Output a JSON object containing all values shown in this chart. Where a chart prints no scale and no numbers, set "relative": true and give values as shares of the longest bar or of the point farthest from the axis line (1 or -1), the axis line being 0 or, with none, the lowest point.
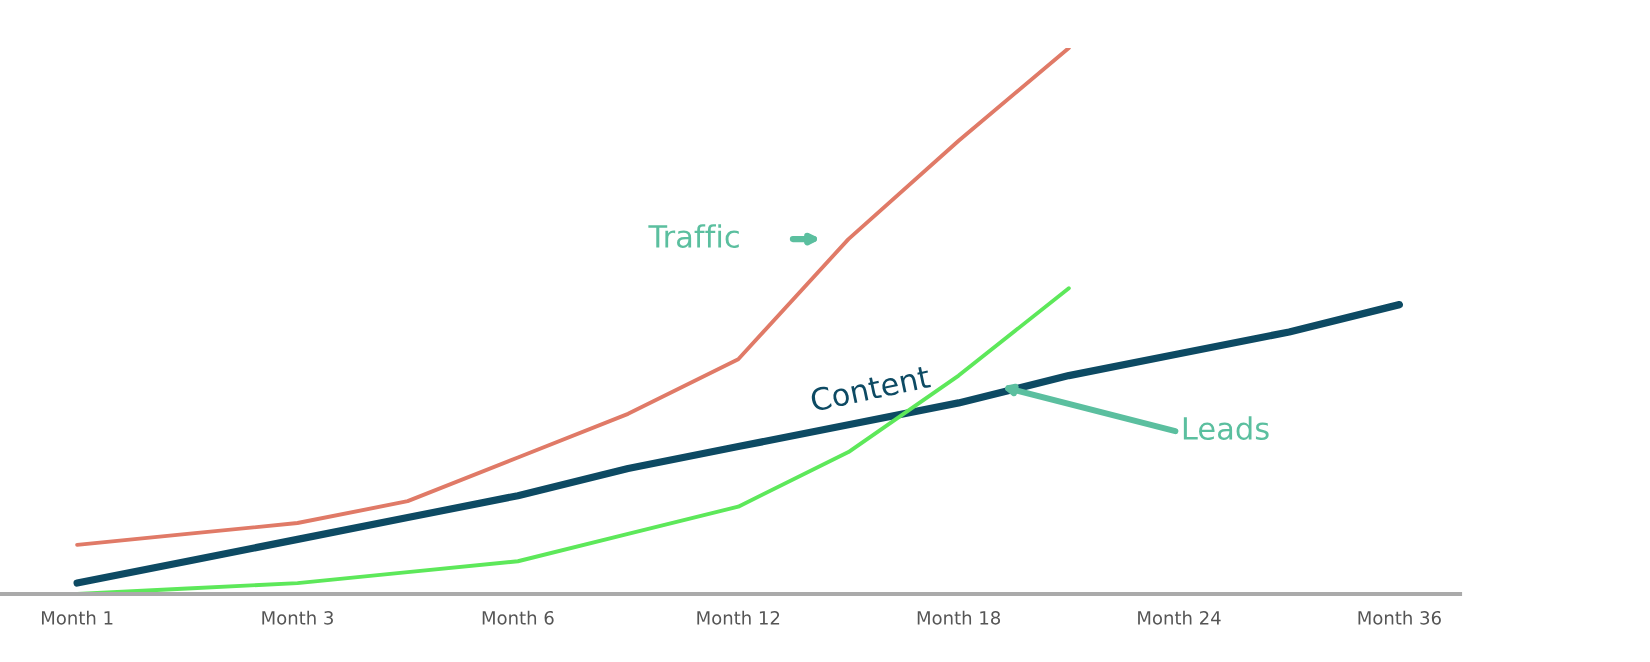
{
  "chart_data": {
    "type": "line",
    "relative": true,
    "categories": [
      "Month 1",
      null,
      "Month 3",
      null,
      "Month 6",
      null,
      "Month 12",
      null,
      "Month 18",
      null,
      "Month 24",
      null,
      "Month 36"
    ],
    "grid": false,
    "legend": false,
    "marker": "none",
    "line_style": "solid",
    "series": [
      {
        "name": "Traffic",
        "color": "#e07a67",
        "values": [
          0.09,
          0.11,
          0.13,
          0.17,
          0.25,
          0.33,
          0.43,
          0.65,
          0.83,
          1,
          null,
          null,
          null
        ]
      },
      {
        "name": "Content",
        "color": "#0d4a63",
        "values": [
          0.02,
          0.06,
          0.1,
          0.14,
          0.18,
          0.23,
          0.27,
          0.31,
          0.35,
          0.4,
          0.44,
          0.48,
          0.53
        ]
      },
      {
        "name": "Leads",
        "color": "#5de85a",
        "values": [
          0,
          0.01,
          0.02,
          0.04,
          0.06,
          0.11,
          0.16,
          0.26,
          0.4,
          0.56,
          null,
          null,
          null
        ]
      }
    ]
  }
}
